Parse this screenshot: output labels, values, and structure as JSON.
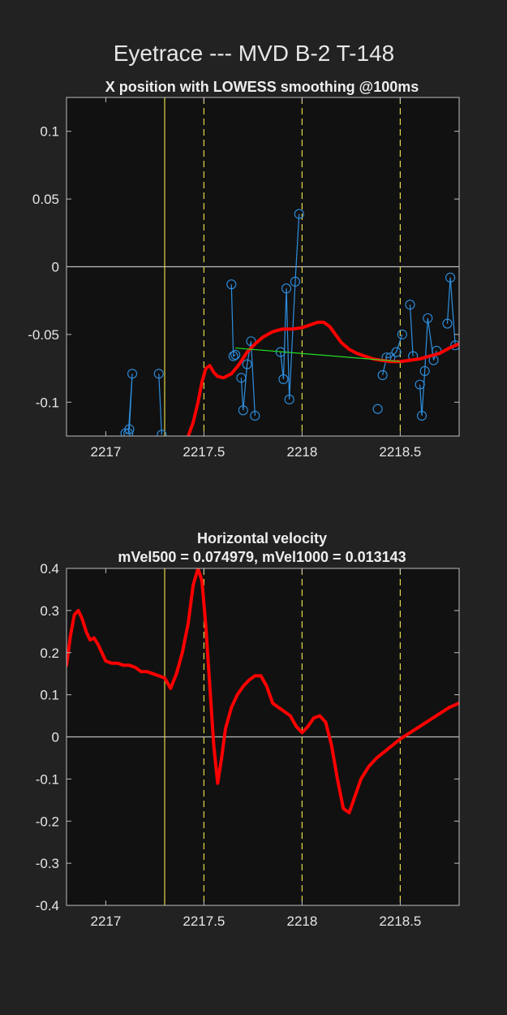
{
  "figure": {
    "title": "Eyetrace --- MVD B-2 T-148",
    "colors": {
      "background": "#222222",
      "axes_background": "#111111",
      "axes_border": "#bdbdbd",
      "zero_line": "#bfbfbf",
      "event_line": "#e3d64a",
      "raw_trace": "#2e8fe0",
      "smooth_trace": "#ff0000",
      "fit_line": "#22dd22"
    }
  },
  "chart_data": [
    {
      "type": "line",
      "title": "X position with LOWESS smoothing @100ms",
      "xlim": [
        2216.8,
        2218.8
      ],
      "ylim": [
        -0.125,
        0.125
      ],
      "xticks": [
        2217,
        2217.5,
        2218,
        2218.5
      ],
      "xtick_labels": [
        "2217",
        "2217.5",
        "2218",
        "2218.5"
      ],
      "yticks": [
        0.1,
        0.05,
        0,
        -0.05,
        -0.1
      ],
      "ytick_labels": [
        "0.1",
        "0.05",
        "0",
        "-0.05",
        "-0.1"
      ],
      "grid": false,
      "zero_line": 0,
      "event_lines": [
        {
          "x": 2217.3,
          "style": "solid"
        },
        {
          "x": 2217.5,
          "style": "dashed"
        },
        {
          "x": 2218.0,
          "style": "dashed"
        },
        {
          "x": 2218.5,
          "style": "dashed"
        }
      ],
      "series": [
        {
          "kind": "raw-samples",
          "marker": "circle",
          "segments": [
            [
              [
                2217.1,
                -0.123
              ],
              [
                2217.115,
                -0.123
              ],
              [
                2217.135,
                -0.079
              ],
              [
                2217.12,
                -0.12
              ]
            ],
            [
              [
                2217.27,
                -0.079
              ],
              [
                2217.285,
                -0.124
              ]
            ],
            [
              [
                2217.64,
                -0.013
              ],
              [
                2217.65,
                -0.066
              ],
              [
                2217.66,
                -0.065
              ]
            ],
            [
              [
                2217.69,
                -0.082
              ],
              [
                2217.7,
                -0.106
              ],
              [
                2217.72,
                -0.072
              ],
              [
                2217.74,
                -0.055
              ],
              [
                2217.76,
                -0.11
              ]
            ],
            [
              [
                2217.89,
                -0.063
              ],
              [
                2217.905,
                -0.083
              ],
              [
                2217.92,
                -0.016
              ],
              [
                2217.935,
                -0.098
              ],
              [
                2217.965,
                -0.011
              ],
              [
                2217.985,
                0.039
              ]
            ],
            [
              [
                2218.385,
                -0.105
              ]
            ],
            [
              [
                2218.41,
                -0.08
              ],
              [
                2218.43,
                -0.067
              ],
              [
                2218.45,
                -0.067
              ],
              [
                2218.48,
                -0.063
              ],
              [
                2218.51,
                -0.05
              ]
            ],
            [
              [
                2218.55,
                -0.028
              ],
              [
                2218.565,
                -0.066
              ]
            ],
            [
              [
                2218.6,
                -0.087
              ],
              [
                2218.61,
                -0.11
              ],
              [
                2218.625,
                -0.077
              ],
              [
                2218.64,
                -0.038
              ],
              [
                2218.67,
                -0.069
              ],
              [
                2218.685,
                -0.062
              ]
            ],
            [
              [
                2218.74,
                -0.042
              ],
              [
                2218.755,
                -0.008
              ],
              [
                2218.78,
                -0.058
              ]
            ]
          ]
        },
        {
          "kind": "smoothed",
          "points": [
            [
              2217.42,
              -0.125
            ],
            [
              2217.445,
              -0.115
            ],
            [
              2217.47,
              -0.1
            ],
            [
              2217.49,
              -0.085
            ],
            [
              2217.51,
              -0.075
            ],
            [
              2217.53,
              -0.073
            ],
            [
              2217.55,
              -0.078
            ],
            [
              2217.57,
              -0.081
            ],
            [
              2217.6,
              -0.082
            ],
            [
              2217.64,
              -0.079
            ],
            [
              2217.68,
              -0.072
            ],
            [
              2217.72,
              -0.063
            ],
            [
              2217.76,
              -0.057
            ],
            [
              2217.8,
              -0.052
            ],
            [
              2217.85,
              -0.048
            ],
            [
              2217.9,
              -0.046
            ],
            [
              2217.95,
              -0.046
            ],
            [
              2218.0,
              -0.045
            ],
            [
              2218.04,
              -0.043
            ],
            [
              2218.08,
              -0.041
            ],
            [
              2218.11,
              -0.041
            ],
            [
              2218.14,
              -0.044
            ],
            [
              2218.17,
              -0.05
            ],
            [
              2218.2,
              -0.056
            ],
            [
              2218.24,
              -0.061
            ],
            [
              2218.28,
              -0.064
            ],
            [
              2218.32,
              -0.066
            ],
            [
              2218.36,
              -0.068
            ],
            [
              2218.4,
              -0.069
            ],
            [
              2218.45,
              -0.07
            ],
            [
              2218.5,
              -0.07
            ],
            [
              2218.55,
              -0.069
            ],
            [
              2218.6,
              -0.068
            ],
            [
              2218.65,
              -0.066
            ],
            [
              2218.7,
              -0.064
            ],
            [
              2218.75,
              -0.06
            ],
            [
              2218.8,
              -0.057
            ]
          ]
        },
        {
          "kind": "linear-fit",
          "points": [
            [
              2217.66,
              -0.06
            ],
            [
              2218.5,
              -0.07
            ]
          ]
        }
      ]
    },
    {
      "type": "line",
      "title": "Horizontal velocity",
      "subtitle": "mVel500 = 0.074979, mVel1000 = 0.013143",
      "xlim": [
        2216.8,
        2218.8
      ],
      "ylim": [
        -0.4,
        0.4
      ],
      "xticks": [
        2217,
        2217.5,
        2218,
        2218.5
      ],
      "xtick_labels": [
        "2217",
        "2217.5",
        "2218",
        "2218.5"
      ],
      "yticks": [
        0.4,
        0.3,
        0.2,
        0.1,
        0,
        -0.1,
        -0.2,
        -0.3,
        -0.4
      ],
      "ytick_labels": [
        "0.4",
        "0.3",
        "0.2",
        "0.1",
        "0",
        "-0.1",
        "-0.2",
        "-0.3",
        "-0.4"
      ],
      "grid": false,
      "zero_line": 0,
      "event_lines": [
        {
          "x": 2217.3,
          "style": "solid"
        },
        {
          "x": 2217.5,
          "style": "dashed"
        },
        {
          "x": 2218.0,
          "style": "dashed"
        },
        {
          "x": 2218.5,
          "style": "dashed"
        }
      ],
      "series": [
        {
          "kind": "smoothed",
          "points": [
            [
              2216.8,
              0.17
            ],
            [
              2216.82,
              0.24
            ],
            [
              2216.84,
              0.29
            ],
            [
              2216.86,
              0.3
            ],
            [
              2216.88,
              0.28
            ],
            [
              2216.9,
              0.25
            ],
            [
              2216.92,
              0.23
            ],
            [
              2216.94,
              0.235
            ],
            [
              2216.96,
              0.22
            ],
            [
              2216.98,
              0.2
            ],
            [
              2217.0,
              0.18
            ],
            [
              2217.03,
              0.175
            ],
            [
              2217.06,
              0.175
            ],
            [
              2217.09,
              0.17
            ],
            [
              2217.12,
              0.17
            ],
            [
              2217.15,
              0.165
            ],
            [
              2217.18,
              0.155
            ],
            [
              2217.21,
              0.155
            ],
            [
              2217.24,
              0.15
            ],
            [
              2217.27,
              0.145
            ],
            [
              2217.3,
              0.14
            ],
            [
              2217.33,
              0.115
            ],
            [
              2217.36,
              0.15
            ],
            [
              2217.39,
              0.2
            ],
            [
              2217.42,
              0.27
            ],
            [
              2217.445,
              0.36
            ],
            [
              2217.47,
              0.4
            ],
            [
              2217.49,
              0.37
            ],
            [
              2217.51,
              0.26
            ],
            [
              2217.53,
              0.12
            ],
            [
              2217.55,
              -0.02
            ],
            [
              2217.57,
              -0.11
            ],
            [
              2217.59,
              -0.05
            ],
            [
              2217.61,
              0.02
            ],
            [
              2217.64,
              0.07
            ],
            [
              2217.67,
              0.1
            ],
            [
              2217.7,
              0.12
            ],
            [
              2217.73,
              0.135
            ],
            [
              2217.76,
              0.145
            ],
            [
              2217.79,
              0.145
            ],
            [
              2217.82,
              0.12
            ],
            [
              2217.85,
              0.08
            ],
            [
              2217.88,
              0.07
            ],
            [
              2217.91,
              0.06
            ],
            [
              2217.94,
              0.05
            ],
            [
              2217.97,
              0.025
            ],
            [
              2218.0,
              0.01
            ],
            [
              2218.03,
              0.025
            ],
            [
              2218.06,
              0.045
            ],
            [
              2218.09,
              0.05
            ],
            [
              2218.12,
              0.035
            ],
            [
              2218.15,
              -0.02
            ],
            [
              2218.18,
              -0.1
            ],
            [
              2218.21,
              -0.17
            ],
            [
              2218.24,
              -0.18
            ],
            [
              2218.27,
              -0.14
            ],
            [
              2218.3,
              -0.1
            ],
            [
              2218.34,
              -0.07
            ],
            [
              2218.38,
              -0.05
            ],
            [
              2218.42,
              -0.035
            ],
            [
              2218.46,
              -0.02
            ],
            [
              2218.5,
              -0.005
            ],
            [
              2218.55,
              0.01
            ],
            [
              2218.6,
              0.025
            ],
            [
              2218.65,
              0.04
            ],
            [
              2218.7,
              0.055
            ],
            [
              2218.75,
              0.07
            ],
            [
              2218.8,
              0.08
            ]
          ]
        }
      ]
    }
  ]
}
